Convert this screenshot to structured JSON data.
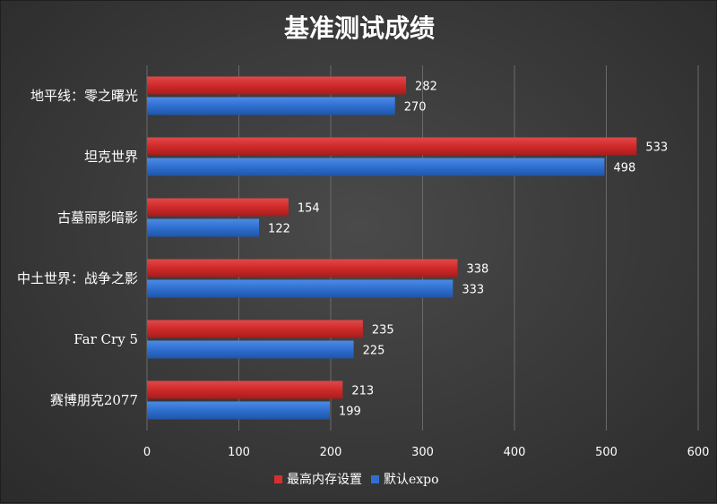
{
  "chart_data": {
    "type": "bar",
    "orientation": "horizontal",
    "title": "基准测试成绩",
    "categories": [
      "地平线：零之曙光",
      "坦克世界",
      "古墓丽影暗影",
      "中土世界：战争之影",
      "Far Cry 5",
      "赛博朋克2077"
    ],
    "series": [
      {
        "name": "最高内存设置",
        "color": "#d62f2f",
        "values": [
          282,
          533,
          154,
          338,
          235,
          213
        ]
      },
      {
        "name": "默认expo",
        "color": "#2f6fd0",
        "values": [
          270,
          498,
          122,
          333,
          225,
          199
        ]
      }
    ],
    "xlim": [
      0,
      600
    ],
    "xticks": [
      0,
      100,
      200,
      300,
      400,
      500,
      600
    ],
    "grid": true,
    "legend_position": "bottom"
  }
}
